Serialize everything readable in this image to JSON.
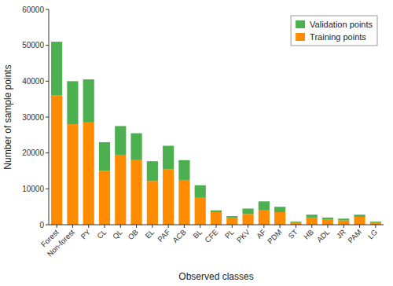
{
  "chart_data": {
    "type": "bar",
    "stacked": true,
    "categories": [
      "Forest",
      "Non-forest",
      "PY",
      "CL",
      "QL",
      "OB",
      "EL",
      "PAF",
      "ACB",
      "BL",
      "CFE",
      "PL",
      "PKV",
      "AF",
      "PDM",
      "ST",
      "HB",
      "ADL",
      "JR",
      "PAM",
      "LG"
    ],
    "series": [
      {
        "name": "Training points",
        "color": "#FF8C00",
        "values": [
          36000,
          28000,
          28500,
          15000,
          19500,
          18000,
          12200,
          15500,
          12500,
          7500,
          3500,
          2000,
          3000,
          4000,
          3500,
          700,
          2000,
          1500,
          1200,
          2200,
          700
        ]
      },
      {
        "name": "Validation points",
        "color": "#4CAF50",
        "values": [
          15000,
          12000,
          12000,
          8000,
          8000,
          7500,
          5500,
          6500,
          5500,
          3500,
          500,
          400,
          1500,
          2500,
          1500,
          200,
          800,
          500,
          500,
          600,
          200
        ]
      }
    ],
    "xlabel": "Observed classes",
    "ylabel": "Number of sample points",
    "ylim": [
      0,
      60000
    ],
    "yticks": [
      0,
      10000,
      20000,
      30000,
      40000,
      50000,
      60000
    ],
    "legend": "upper right",
    "grid": false
  }
}
